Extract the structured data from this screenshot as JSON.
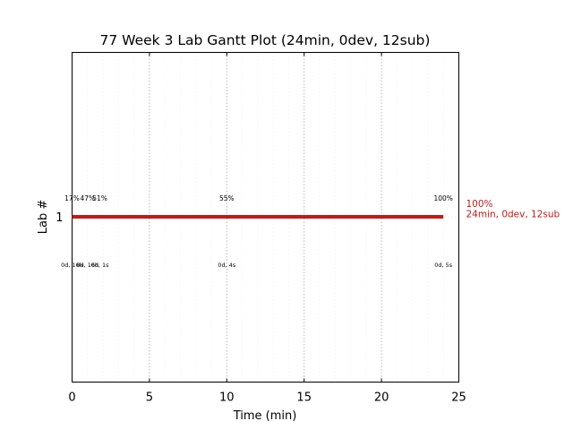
{
  "chart_data": {
    "type": "gantt",
    "title": "77 Week 3 Lab Gantt Plot (24min, 0dev, 12sub)",
    "xlabel": "Time (min)",
    "ylabel": "Lab #",
    "xlim": [
      0,
      25
    ],
    "xticks": [
      "0",
      "5",
      "10",
      "15",
      "20",
      "25"
    ],
    "yticks": [
      "1"
    ],
    "grid": true,
    "colors": {
      "bar": "#c11b17",
      "grid": "#b8b8b8",
      "axis": "#000000"
    },
    "bars": [
      {
        "lab": 1,
        "start": 0,
        "end": 24,
        "end_label_1": "100%",
        "end_label_2": "24min, 0dev, 12sub"
      }
    ],
    "annotations": [
      {
        "x": 0,
        "top": "17%",
        "bottom": "0d, 16h"
      },
      {
        "x": 1,
        "top": "47%",
        "bottom": "0d, 16h"
      },
      {
        "x": 1.8,
        "top": "51%",
        "bottom": "0d, 1s"
      },
      {
        "x": 10,
        "top": "55%",
        "bottom": "0d, 4s"
      },
      {
        "x": 24,
        "top": "100%",
        "bottom": "0d, 5s"
      }
    ]
  }
}
